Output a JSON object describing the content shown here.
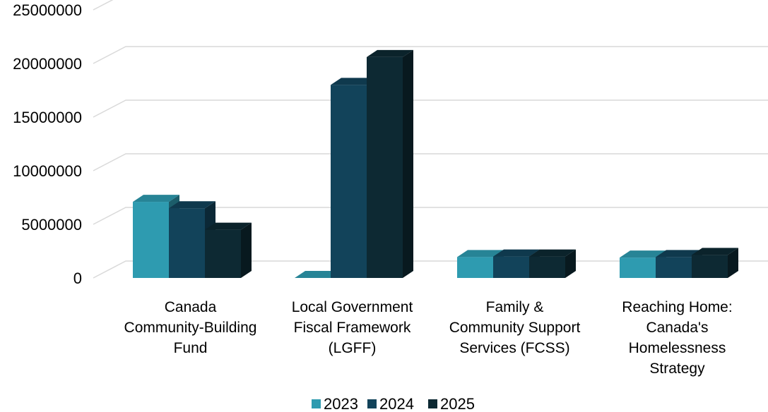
{
  "chart_data": {
    "type": "bar",
    "categories": [
      [
        "Canada",
        "Community-Building",
        "Fund"
      ],
      [
        "Local Government",
        "Fiscal Framework",
        "(LGFF)"
      ],
      [
        "Family &",
        "Community Support",
        "Services (FCSS)"
      ],
      [
        "Reaching Home:",
        "Canada's",
        "Homelessness",
        "Strategy"
      ]
    ],
    "series": [
      {
        "name": "2023",
        "color": "#2e9bb0",
        "values": [
          7100000,
          0,
          1950000,
          1900000
        ]
      },
      {
        "name": "2024",
        "color": "#12435a",
        "values": [
          6500000,
          18000000,
          2000000,
          1950000
        ]
      },
      {
        "name": "2025",
        "color": "#0d2933",
        "values": [
          4500000,
          20600000,
          2000000,
          2150000
        ]
      }
    ],
    "y_ticks": [
      "0",
      "5000000",
      "10000000",
      "15000000",
      "20000000",
      "25000000"
    ],
    "ylim": [
      0,
      25000000
    ],
    "grid": true,
    "legend_position": "bottom",
    "style": "3d-column"
  }
}
